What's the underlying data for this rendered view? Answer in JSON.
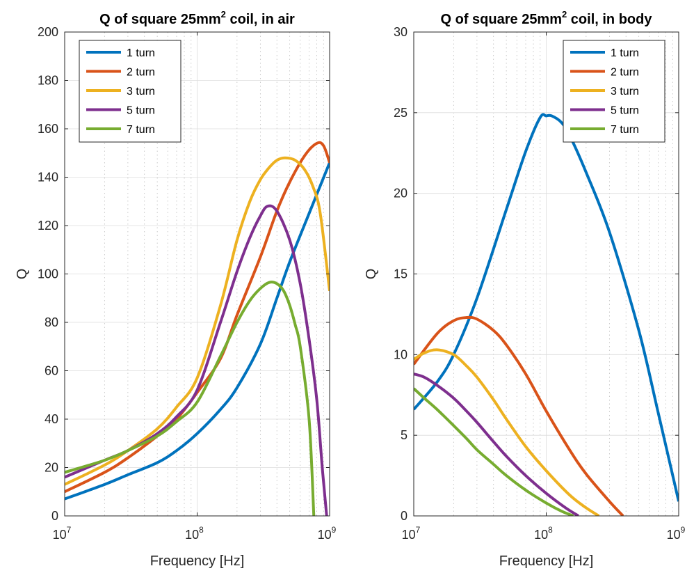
{
  "chart_data": [
    {
      "type": "line",
      "title_main": "Q of square 25mm",
      "title_sup": "2",
      "title_rest": " coil, in air",
      "xlabel": "Frequency [Hz]",
      "ylabel": "Q",
      "xscale": "log",
      "xlim": [
        10000000,
        1000000000
      ],
      "ylim": [
        0,
        200
      ],
      "yticks": [
        0,
        20,
        40,
        60,
        80,
        100,
        120,
        140,
        160,
        180,
        200
      ],
      "xticks": [
        {
          "value": 10000000,
          "base": "10",
          "exp": "7"
        },
        {
          "value": 100000000,
          "base": "10",
          "exp": "8"
        },
        {
          "value": 1000000000,
          "base": "10",
          "exp": "9"
        }
      ],
      "grid": true,
      "legend_position": "top-left",
      "series": [
        {
          "name": "1 turn",
          "color": "#0072BD",
          "x": [
            10000000,
            20000000,
            30000000,
            50000000,
            70000000,
            100000000,
            150000000,
            200000000,
            300000000,
            400000000,
            500000000,
            700000000,
            1000000000
          ],
          "y": [
            7,
            13,
            17,
            22,
            27,
            34,
            44,
            53,
            71,
            90,
            105,
            125,
            146
          ]
        },
        {
          "name": "2 turn",
          "color": "#D95319",
          "x": [
            10000000,
            20000000,
            30000000,
            50000000,
            70000000,
            100000000,
            150000000,
            200000000,
            300000000,
            400000000,
            500000000,
            650000000,
            800000000,
            900000000,
            1000000000
          ],
          "y": [
            10,
            18,
            24,
            33,
            40,
            51,
            65,
            83,
            107,
            126,
            138,
            149,
            154,
            153,
            146
          ]
        },
        {
          "name": "3 turn",
          "color": "#EDB120",
          "x": [
            10000000,
            20000000,
            30000000,
            50000000,
            70000000,
            100000000,
            150000000,
            200000000,
            250000000,
            300000000,
            350000000,
            400000000,
            460000000,
            550000000,
            650000000,
            750000000,
            850000000,
            1000000000
          ],
          "y": [
            13,
            21,
            27,
            36,
            45,
            57,
            87,
            114,
            130,
            139,
            144,
            147,
            148,
            147,
            143,
            136,
            125,
            93
          ]
        },
        {
          "name": "5 turn",
          "color": "#7E2F8E",
          "x": [
            10000000,
            20000000,
            30000000,
            50000000,
            70000000,
            100000000,
            150000000,
            200000000,
            250000000,
            300000000,
            340000000,
            400000000,
            500000000,
            600000000,
            700000000,
            800000000,
            880000000,
            950000000
          ],
          "y": [
            16,
            23,
            27,
            34,
            41,
            52,
            80,
            101,
            115,
            124,
            128,
            126,
            114,
            96,
            73,
            48,
            20,
            0
          ]
        },
        {
          "name": "7 turn",
          "color": "#77AC30",
          "x": [
            10000000,
            20000000,
            30000000,
            50000000,
            70000000,
            100000000,
            150000000,
            200000000,
            250000000,
            300000000,
            350000000,
            400000000,
            450000000,
            500000000,
            550000000,
            600000000,
            700000000,
            760000000
          ],
          "y": [
            18,
            23,
            27,
            33,
            39,
            47,
            66,
            80,
            89,
            94,
            96.5,
            96,
            93,
            87,
            79,
            70,
            40,
            0
          ]
        }
      ]
    },
    {
      "type": "line",
      "title_main": "Q of square 25mm",
      "title_sup": "2",
      "title_rest": " coil, in body",
      "xlabel": "Frequency [Hz]",
      "ylabel": "Q",
      "xscale": "log",
      "xlim": [
        10000000,
        1000000000
      ],
      "ylim": [
        0,
        30
      ],
      "yticks": [
        0,
        5,
        10,
        15,
        20,
        25,
        30
      ],
      "xticks": [
        {
          "value": 10000000,
          "base": "10",
          "exp": "7"
        },
        {
          "value": 100000000,
          "base": "10",
          "exp": "8"
        },
        {
          "value": 1000000000,
          "base": "10",
          "exp": "9"
        }
      ],
      "grid": true,
      "legend_position": "top-right",
      "series": [
        {
          "name": "1 turn",
          "color": "#0072BD",
          "x": [
            10000000,
            15000000,
            20000000,
            30000000,
            50000000,
            70000000,
            90000000,
            100000000,
            110000000,
            130000000,
            150000000,
            200000000,
            300000000,
            500000000,
            700000000,
            1000000000
          ],
          "y": [
            6.6,
            8.3,
            10,
            13.5,
            19,
            22.6,
            24.7,
            24.8,
            24.8,
            24.4,
            23.6,
            21.3,
            17.6,
            11.5,
            6.4,
            0.9
          ]
        },
        {
          "name": "2 turn",
          "color": "#D95319",
          "x": [
            10000000,
            15000000,
            20000000,
            25000000,
            30000000,
            40000000,
            50000000,
            70000000,
            100000000,
            150000000,
            200000000,
            300000000,
            380000000
          ],
          "y": [
            9.4,
            11.3,
            12.1,
            12.3,
            12.2,
            11.5,
            10.6,
            8.8,
            6.5,
            4.1,
            2.6,
            0.9,
            0
          ]
        },
        {
          "name": "3 turn",
          "color": "#EDB120",
          "x": [
            10000000,
            12000000,
            15000000,
            20000000,
            25000000,
            30000000,
            40000000,
            50000000,
            70000000,
            100000000,
            150000000,
            200000000,
            250000000
          ],
          "y": [
            9.7,
            10.1,
            10.3,
            10,
            9.3,
            8.6,
            7.2,
            6,
            4.3,
            2.8,
            1.3,
            0.5,
            0
          ]
        },
        {
          "name": "5 turn",
          "color": "#7E2F8E",
          "x": [
            10000000,
            12000000,
            15000000,
            20000000,
            25000000,
            30000000,
            40000000,
            50000000,
            70000000,
            100000000,
            140000000,
            175000000
          ],
          "y": [
            8.8,
            8.6,
            8.1,
            7.3,
            6.5,
            5.8,
            4.6,
            3.7,
            2.5,
            1.4,
            0.5,
            0
          ]
        },
        {
          "name": "7 turn",
          "color": "#77AC30",
          "x": [
            10000000,
            12000000,
            15000000,
            20000000,
            25000000,
            30000000,
            40000000,
            50000000,
            70000000,
            100000000,
            130000000,
            160000000
          ],
          "y": [
            7.9,
            7.3,
            6.6,
            5.6,
            4.8,
            4.1,
            3.2,
            2.5,
            1.6,
            0.8,
            0.3,
            0
          ]
        }
      ]
    }
  ]
}
